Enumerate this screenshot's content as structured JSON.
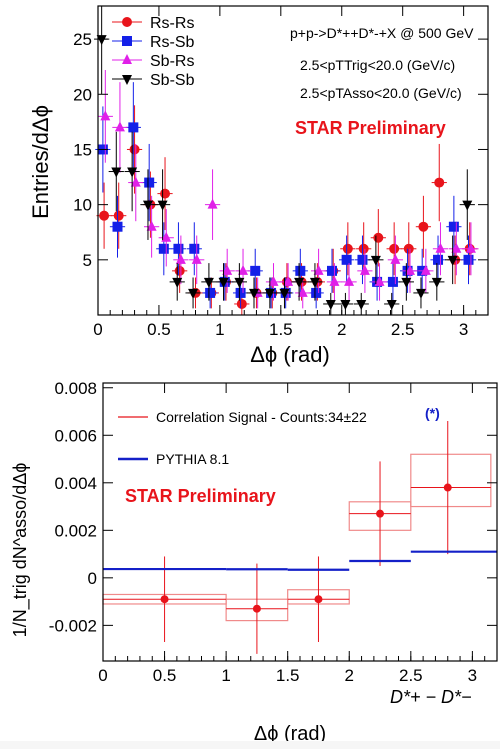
{
  "chart_data": [
    {
      "type": "scatter",
      "title": "",
      "xlabel": "Δϕ (rad)",
      "ylabel": "Entries/dΔϕ",
      "xlim": [
        0,
        3.2
      ],
      "ylim": [
        0,
        28
      ],
      "x_ticks": [
        0,
        0.5,
        1,
        1.5,
        2,
        2.5,
        3
      ],
      "x_tick_labels": [
        "0",
        "0.5",
        "1",
        "1.5",
        "2",
        "2.5",
        "3"
      ],
      "y_ticks": [
        5,
        10,
        15,
        20,
        25
      ],
      "y_tick_labels": [
        "5",
        "10",
        "15",
        "20",
        "25"
      ],
      "legend_position": "top-left",
      "annotations": {
        "process": "p+p->D*++D*-+X @ 500 GeV",
        "trig_cut": "2.5<pTTrig<20.0 (GeV/c)",
        "asso_cut": "2.5<pTAsso<20.0 (GeV/c)",
        "preliminary": "STAR Preliminary"
      },
      "series": [
        {
          "name": "Rs-Rs",
          "marker": "circle",
          "color": "#e8141b",
          "x": [
            0.05,
            0.17,
            0.3,
            0.43,
            0.55,
            0.67,
            0.8,
            0.93,
            1.05,
            1.18,
            1.3,
            1.43,
            1.55,
            1.67,
            1.8,
            1.93,
            2.05,
            2.18,
            2.3,
            2.43,
            2.55,
            2.67,
            2.8,
            2.93,
            3.05
          ],
          "y": [
            9,
            9,
            15,
            10,
            11,
            4,
            2,
            2,
            3,
            1,
            2,
            2,
            3,
            3,
            3,
            4,
            6,
            6,
            7,
            6,
            6,
            8,
            12,
            5,
            6
          ],
          "err": [
            3,
            3,
            4,
            3,
            3.3,
            2,
            1.4,
            1.4,
            1.7,
            1,
            1.4,
            1.4,
            1.7,
            1.7,
            1.7,
            2,
            2.4,
            2.4,
            2.6,
            2.4,
            2.4,
            2.8,
            3.5,
            2.2,
            2.4
          ]
        },
        {
          "name": "Rs-Sb",
          "marker": "square",
          "color": "#1420e8",
          "x": [
            0.04,
            0.16,
            0.29,
            0.42,
            0.54,
            0.66,
            0.79,
            0.92,
            1.04,
            1.17,
            1.29,
            1.42,
            1.54,
            1.66,
            1.79,
            1.92,
            2.04,
            2.17,
            2.29,
            2.42,
            2.54,
            2.66,
            2.79,
            2.92,
            3.04
          ],
          "y": [
            15,
            8,
            17,
            12,
            6,
            6,
            6,
            2,
            3,
            2,
            4,
            2,
            2,
            4,
            2,
            4,
            5,
            5,
            3,
            3,
            4,
            4,
            5,
            8,
            5
          ],
          "err": [
            3.9,
            2.8,
            4.1,
            3.5,
            2.4,
            2.4,
            2.4,
            1.4,
            1.7,
            1.4,
            2,
            1.4,
            1.4,
            2,
            1.4,
            2,
            2.2,
            2.2,
            1.7,
            1.7,
            2,
            2,
            2.2,
            2.8,
            2.2
          ]
        },
        {
          "name": "Sb-Rs",
          "marker": "triangle-up",
          "color": "#e020e8",
          "x": [
            0.06,
            0.18,
            0.31,
            0.44,
            0.56,
            0.68,
            0.81,
            0.94,
            1.06,
            1.19,
            1.31,
            1.44,
            1.56,
            1.68,
            1.81,
            1.94,
            2.06,
            2.19,
            2.31,
            2.44,
            2.56,
            2.69,
            2.81,
            2.94,
            3.06
          ],
          "y": [
            18,
            17,
            12,
            8,
            7,
            5,
            5,
            10,
            4,
            4,
            2,
            3,
            3,
            2,
            4,
            3,
            3,
            4,
            3,
            5,
            4,
            4,
            6,
            6,
            6
          ],
          "err": [
            4.2,
            4.1,
            3.5,
            2.8,
            2.6,
            2.2,
            2.2,
            3.2,
            2,
            2,
            1.4,
            1.7,
            1.7,
            1.4,
            2,
            1.7,
            1.7,
            2,
            1.7,
            2.2,
            2,
            2,
            2.4,
            2.4,
            2.4
          ]
        },
        {
          "name": "Sb-Sb",
          "marker": "triangle-down",
          "color": "#000000",
          "x": [
            0.03,
            0.15,
            0.28,
            0.41,
            0.53,
            0.65,
            0.78,
            0.91,
            1.03,
            1.16,
            1.28,
            1.41,
            1.53,
            1.65,
            1.78,
            1.91,
            2.03,
            2.16,
            2.28,
            2.41,
            2.53,
            2.65,
            2.78,
            2.91,
            3.03
          ],
          "y": [
            25,
            13,
            13,
            10,
            10,
            3,
            2,
            3,
            3,
            3,
            2,
            2,
            2,
            3,
            3,
            1,
            1,
            1,
            5,
            1,
            3,
            2,
            3,
            5,
            10
          ],
          "err": [
            5,
            3.6,
            3.6,
            3.2,
            3.2,
            1.7,
            1.4,
            1.7,
            1.7,
            1.7,
            1.4,
            1.4,
            1.4,
            1.7,
            1.7,
            1,
            1,
            1,
            2.2,
            1,
            1.7,
            1.4,
            1.7,
            2.2,
            3.2
          ]
        }
      ]
    },
    {
      "type": "scatter",
      "title": "",
      "xlabel": "Δϕ (rad)",
      "ylabel": "1/N_trig dN^asso/dΔϕ",
      "xlim": [
        0,
        3.2
      ],
      "ylim": [
        -0.0035,
        0.0082
      ],
      "x_ticks": [
        0,
        0.5,
        1,
        1.5,
        2,
        2.5,
        3
      ],
      "x_tick_labels": [
        "0",
        "0.5",
        "1",
        "1.5",
        "2",
        "2.5",
        "3"
      ],
      "y_ticks": [
        -0.002,
        0,
        0.002,
        0.004,
        0.006,
        0.008
      ],
      "y_tick_labels": [
        "-0.002",
        "0",
        "0.002",
        "0.004",
        "0.006",
        "0.008"
      ],
      "legend_position": "top-left",
      "annotations": {
        "preliminary": "STAR Preliminary",
        "pair_label": "D*+ − D*−"
      },
      "series": [
        {
          "name": "Correlation Signal - Counts:34±22",
          "name_marker": "(*)",
          "color": "#e8141b",
          "x": [
            0.5,
            1.25,
            1.75,
            2.25,
            2.8
          ],
          "y": [
            -0.0009,
            -0.0013,
            -0.0009,
            0.0027,
            0.0038
          ],
          "stat_err": [
            0.0018,
            0.0019,
            0.0018,
            0.0022,
            0.0028
          ],
          "sys_box": [
            [
              0,
              1,
              -0.0011,
              -0.0007
            ],
            [
              1,
              1.5,
              -0.0018,
              -0.0009
            ],
            [
              1.5,
              2,
              -0.0011,
              -0.0005
            ],
            [
              2,
              2.5,
              0.002,
              0.0032
            ],
            [
              2.5,
              3.15,
              0.003,
              0.0052
            ]
          ]
        },
        {
          "name": "PYTHIA 8.1",
          "color": "#1420c8",
          "steps": [
            [
              0,
              1,
              0.00037
            ],
            [
              1,
              1.5,
              0.00036
            ],
            [
              1.5,
              2,
              0.00034
            ],
            [
              2,
              2.5,
              0.00071
            ],
            [
              2.5,
              3.2,
              0.0011
            ]
          ]
        }
      ]
    }
  ]
}
